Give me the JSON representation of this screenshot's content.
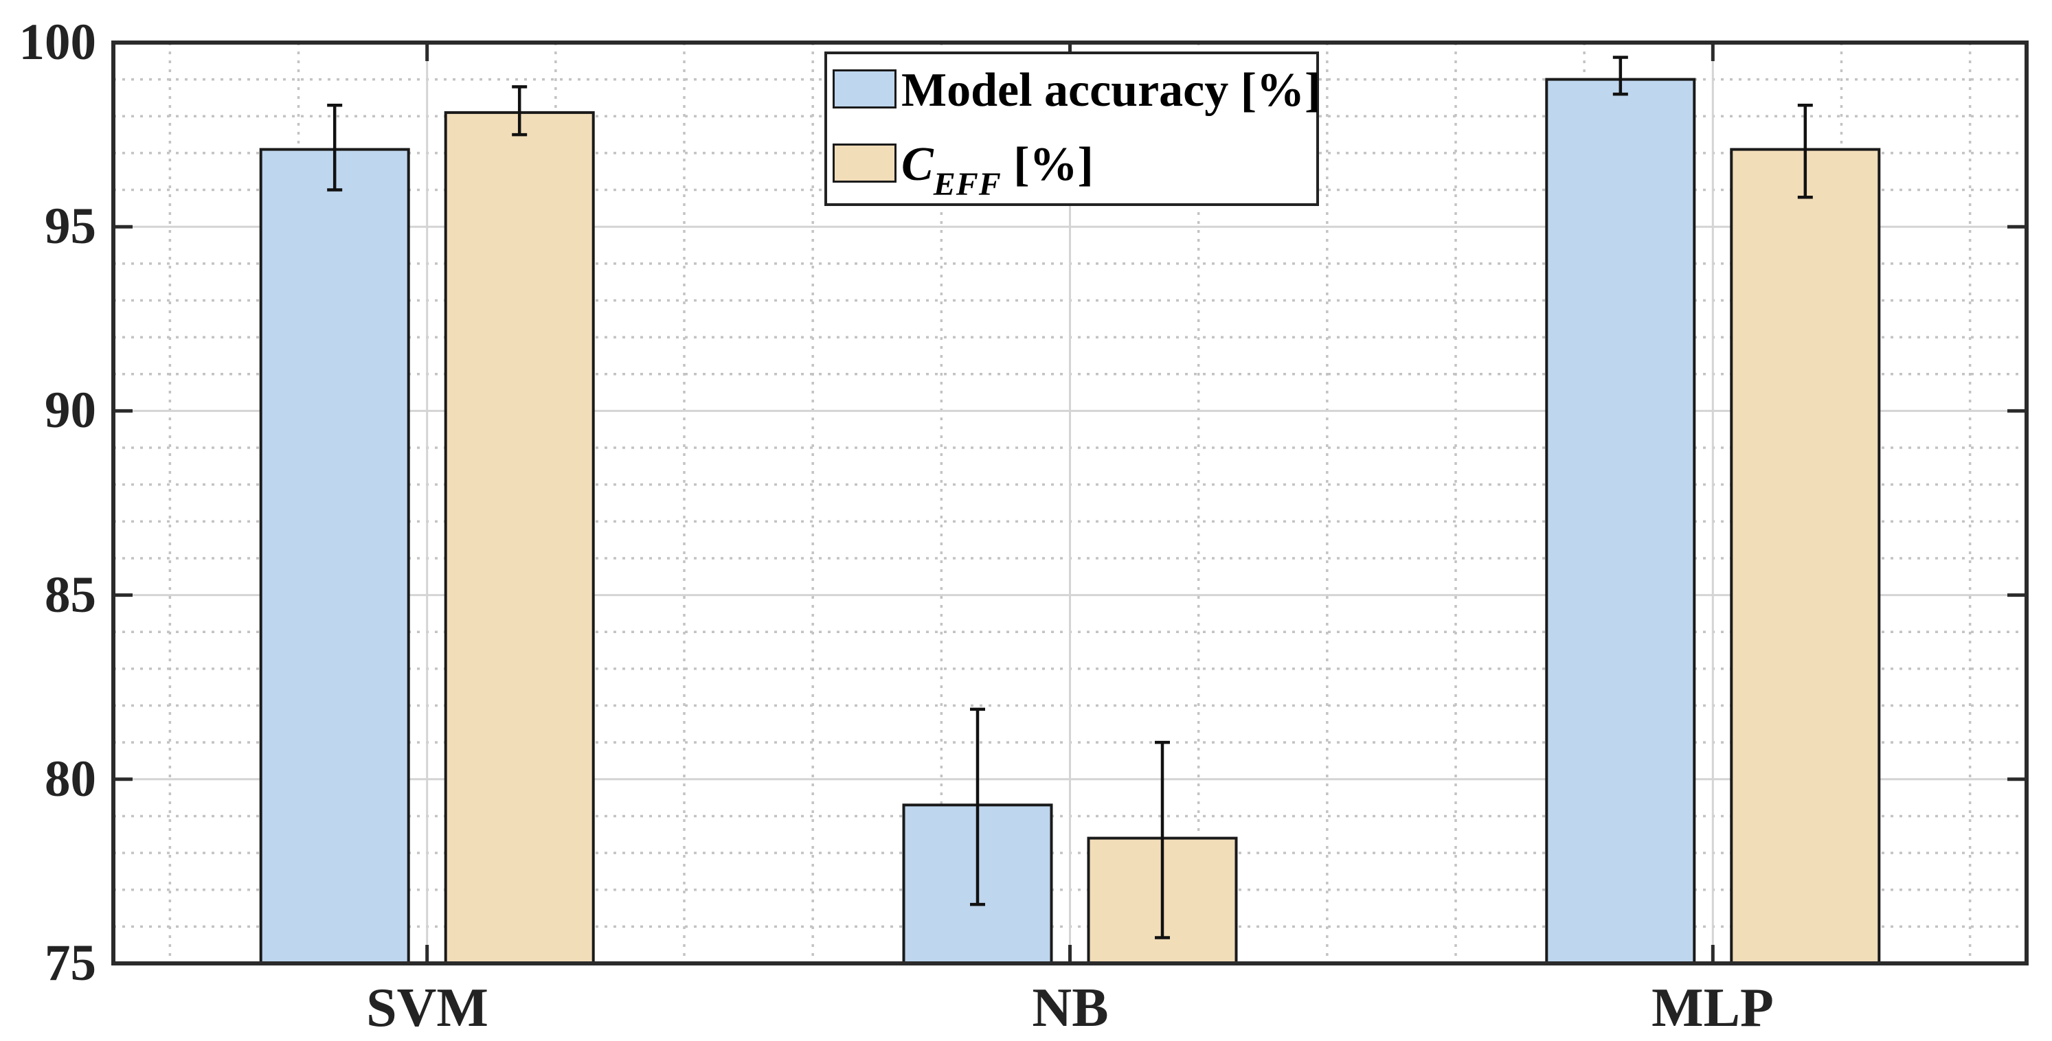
{
  "figure": {
    "background": "#ffffff",
    "axis_color": "#2b2b2b",
    "text_color": "#232323",
    "major_grid_color": "#d4d4d4",
    "minor_grid_color": "#c3c3c3"
  },
  "chart_data": {
    "type": "bar",
    "title": "",
    "xlabel": "",
    "ylabel": "",
    "categories": [
      "SVM",
      "NB",
      "MLP"
    ],
    "series": [
      {
        "name": "Model accuracy [%]",
        "color": "#BED6EE",
        "edge_color": "#1a1a1a",
        "values": [
          97.1,
          79.3,
          99.0
        ],
        "err_low": [
          96.0,
          76.6,
          98.6
        ],
        "err_high": [
          98.3,
          81.9,
          99.6
        ]
      },
      {
        "name": "C_EFF [%]",
        "label_parts": {
          "main": "C",
          "sub": "EFF",
          "suffix": " [%]"
        },
        "color": "#F2DDB9",
        "edge_color": "#1a1a1a",
        "values": [
          98.1,
          78.4,
          97.1
        ],
        "err_low": [
          97.5,
          75.7,
          95.8
        ],
        "err_high": [
          98.8,
          81.0,
          98.3
        ]
      }
    ],
    "ylim": [
      75,
      100
    ],
    "y_major_ticks": [
      75,
      80,
      85,
      90,
      95,
      100
    ],
    "y_minor_step": 1,
    "x_minor_step": 0.2,
    "grid": "on",
    "minor_grid_style": "dotted",
    "legend_position": "top-center",
    "error_bars": "on"
  }
}
